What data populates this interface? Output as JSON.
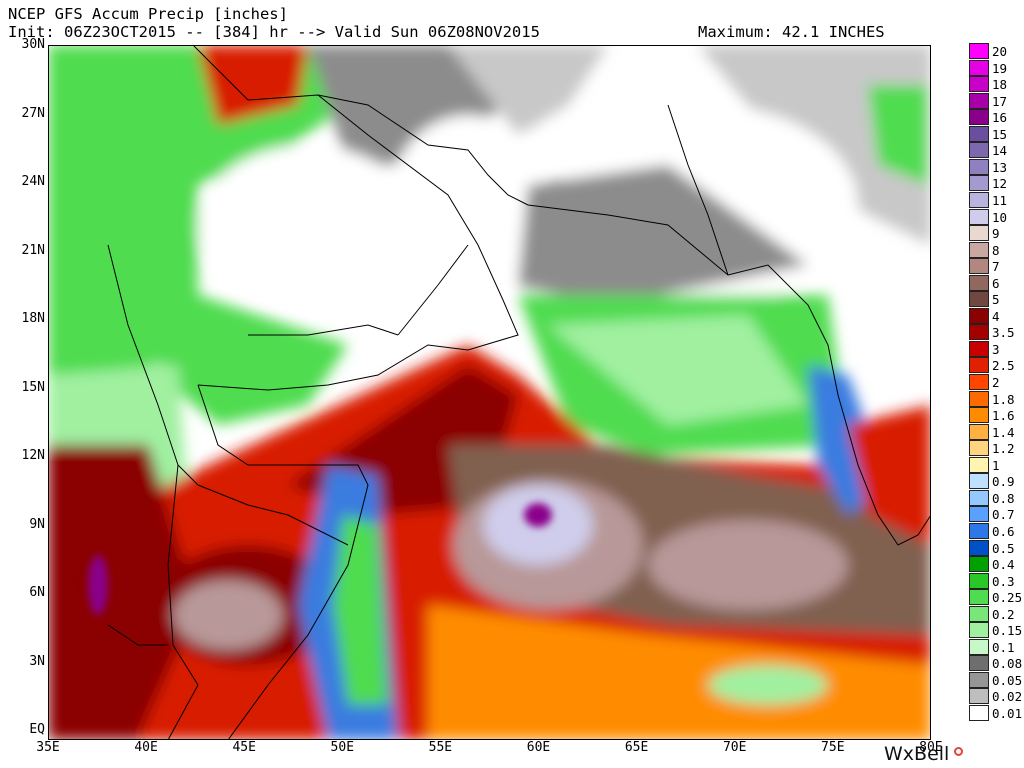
{
  "header": {
    "line1": "NCEP GFS Accum Precip [inches]",
    "line2": "Init: 06Z23OCT2015 -- [384] hr --> Valid Sun 06Z08NOV2015",
    "maximum": "Maximum: 42.1 INCHES"
  },
  "axes": {
    "lat_labels": [
      "30N",
      "27N",
      "24N",
      "21N",
      "18N",
      "15N",
      "12N",
      "9N",
      "6N",
      "3N",
      "EQ"
    ],
    "lon_labels": [
      "35E",
      "40E",
      "45E",
      "50E",
      "55E",
      "60E",
      "65E",
      "70E",
      "75E",
      "80E"
    ]
  },
  "legend": {
    "labels": [
      "20",
      "19",
      "18",
      "17",
      "16",
      "15",
      "14",
      "13",
      "12",
      "11",
      "10",
      "9",
      "8",
      "7",
      "6",
      "5",
      "4",
      "3.5",
      "3",
      "2.5",
      "2",
      "1.8",
      "1.6",
      "1.4",
      "1.2",
      "1",
      "0.9",
      "0.8",
      "0.7",
      "0.6",
      "0.5",
      "0.4",
      "0.3",
      "0.25",
      "0.2",
      "0.15",
      "0.1",
      "0.08",
      "0.05",
      "0.02",
      "0.01"
    ],
    "colors": [
      "#ff00ff",
      "#e600e6",
      "#c800c8",
      "#a800a8",
      "#8a008a",
      "#6a4fa0",
      "#7d68b0",
      "#9080c0",
      "#a49ad0",
      "#b8b4de",
      "#cfcdeb",
      "#e8d8d0",
      "#c8a8a0",
      "#b08880",
      "#906860",
      "#704840",
      "#8b0000",
      "#a50000",
      "#c80000",
      "#e02000",
      "#ff4500",
      "#ff6a00",
      "#ff8c00",
      "#ffb040",
      "#ffd480",
      "#fff4b0",
      "#bfe0ff",
      "#96c8ff",
      "#5aa0ff",
      "#2d78e6",
      "#0050c8",
      "#00a000",
      "#28c828",
      "#50dc50",
      "#78e678",
      "#a0f0a0",
      "#c8f8c8",
      "#6e6e6e",
      "#969696",
      "#bebebe",
      "#ffffff"
    ]
  },
  "credit": {
    "brand": "WxBell"
  },
  "map_colors": {
    "land_outline": "#000000",
    "dry_white": "#ffffff",
    "light_gray": "#c8c8c8",
    "dark_gray": "#8c8c8c",
    "green_light": "#a0f0a0",
    "green_mid": "#50dc50",
    "green_dark": "#10a010",
    "blue": "#3a7be0",
    "orange": "#ff8c00",
    "red": "#d81a00",
    "dark_red": "#8b0000",
    "brown": "#806050",
    "mauve": "#b89898",
    "lavender": "#cfcdeb",
    "purple": "#8a008a"
  }
}
